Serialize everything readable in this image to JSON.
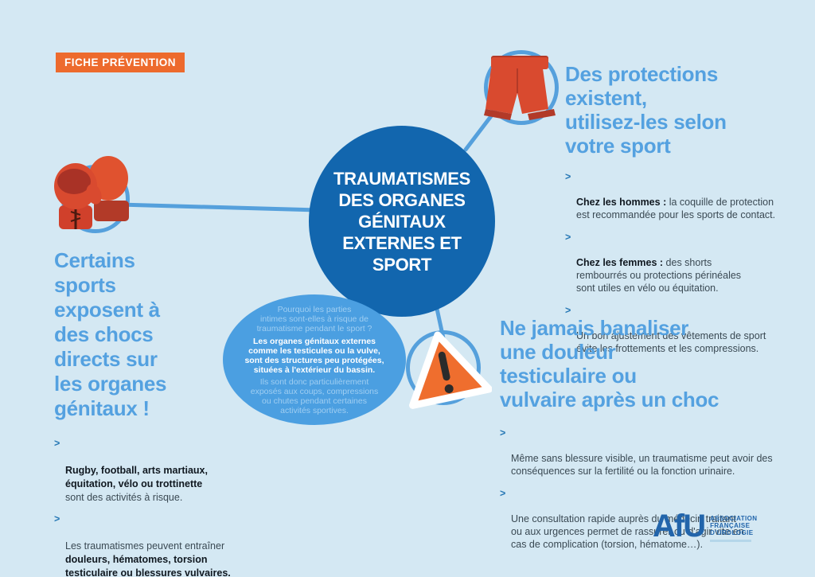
{
  "colors": {
    "background": "#d4e8f3",
    "accent_blue": "#54a1e0",
    "dark_circle_blue": "#1266ae",
    "bubble_blue": "#4b9fe1",
    "bubble_light_text": "#9fcef2",
    "badge_orange": "#ed6a2d",
    "icon_red": "#d94a2f",
    "body_text": "#3a4953",
    "logo_blue": "#2265ab"
  },
  "glyphs": {
    "chevron": ">"
  },
  "badge": {
    "label": "FICHE PRÉVENTION"
  },
  "center": {
    "title": "TRAUMATISMES\nDES ORGANES\nGÉNITAUX\nEXTERNES ET\nSPORT",
    "bubble": {
      "question": "Pourquoi les parties\nintimes sont-elles à risque de\ntraumatisme pendant le sport ?",
      "answer_bold": "Les organes génitaux externes\ncomme les testicules ou la vulve,\nsont des structures peu protégées,\nsituées à l'extérieur du bassin.",
      "answer_rest": "Ils sont donc particulièrement\nexposés aux coups, compressions\nou chutes pendant certaines\nactivités sportives."
    }
  },
  "sections": {
    "risk": {
      "heading": "Certains\nsports\nexposent à\ndes chocs\ndirects sur\nles organes\ngénitaux !",
      "bullets": [
        [
          {
            "text": "Rugby, football, arts martiaux,\néquitation, vélo ou trottinette",
            "bold": true
          },
          {
            "text": "\nsont des activités à risque.",
            "bold": false
          }
        ],
        [
          {
            "text": "Les traumatismes peuvent entraîner\n",
            "bold": false
          },
          {
            "text": "douleurs, hématomes, torsion\ntesticulaire ou blessures vulvaires.",
            "bold": true
          }
        ]
      ]
    },
    "protection": {
      "heading": "Des protections\nexistent,\nutilisez-les selon\nvotre sport",
      "bullets": [
        [
          {
            "text": "Chez les hommes : ",
            "bold": true
          },
          {
            "text": "la coquille de protection\nest recommandée pour les sports de contact.",
            "bold": false
          }
        ],
        [
          {
            "text": "Chez les femmes : ",
            "bold": true
          },
          {
            "text": "des shorts\nrembourrés ou protections périnéales\nsont utiles en vélo ou équitation.",
            "bold": false
          }
        ],
        [
          {
            "text": "Un bon ajustement des vêtements de sport\névite les frottements et les compressions.",
            "bold": false
          }
        ]
      ]
    },
    "pain": {
      "heading": "Ne jamais banaliser\nune douleur\ntesticulaire ou\nvulvaire après un choc",
      "bullets": [
        [
          {
            "text": "Même sans blessure visible, un traumatisme peut avoir des\nconséquences sur la fertilité ou la fonction urinaire.",
            "bold": false
          }
        ],
        [
          {
            "text": "Une consultation rapide auprès du médecin traitant\nou aux urgences permet de rassurer ou d'agir vite en\ncas de complication (torsion, hématome…).",
            "bold": false
          }
        ]
      ]
    }
  },
  "logo": {
    "acronym": "AfU",
    "lines": [
      "ASSOCIATION",
      "FRANÇAISE",
      "D'UROLOGIE"
    ]
  }
}
